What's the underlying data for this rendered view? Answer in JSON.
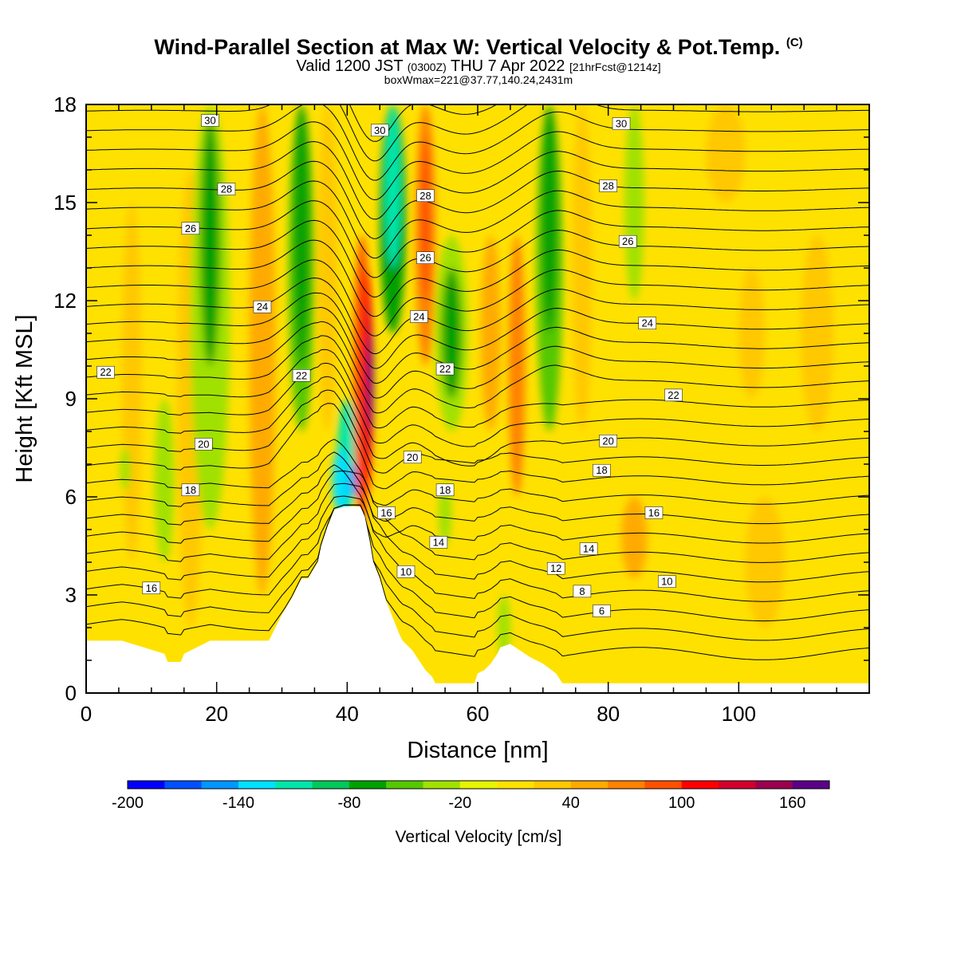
{
  "header": {
    "title": "Wind-Parallel Section at Max W: Vertical Velocity & Pot.Temp.",
    "copyright": "(C)",
    "valid_prefix": "Valid 1200 JST",
    "utc": "(0300Z)",
    "valid_date": "THU 7 Apr 2022",
    "forecast": "[21hrFcst@1214z]",
    "boxwmax": "boxWmax=221@37.77,140.24,2431m"
  },
  "chart_data": {
    "type": "heatmap",
    "xlabel": "Distance [nm]",
    "ylabel": "Height [Kft MSL]",
    "xlim": [
      0,
      120
    ],
    "ylim": [
      0,
      18
    ],
    "xticks": [
      0,
      20,
      40,
      60,
      80,
      100
    ],
    "yticks": [
      0,
      3,
      6,
      9,
      12,
      15,
      18
    ],
    "colorbar": {
      "label": "Vertical Velocity [cm/s]",
      "ticks": [
        -200,
        -140,
        -80,
        -20,
        40,
        100,
        160
      ],
      "levels": [
        -200,
        -180,
        -160,
        -140,
        -120,
        -100,
        -80,
        -60,
        -40,
        -20,
        0,
        20,
        40,
        60,
        80,
        100,
        120,
        140,
        160,
        180
      ],
      "colors": [
        "#0000ff",
        "#0050ff",
        "#0096ff",
        "#00e1ff",
        "#00e6aa",
        "#00c85a",
        "#00a000",
        "#55c800",
        "#a0e100",
        "#e6f500",
        "#ffe100",
        "#ffc800",
        "#ffaa00",
        "#ff8200",
        "#ff5000",
        "#ff0000",
        "#d2002d",
        "#9b0050",
        "#5a0087"
      ]
    },
    "vertical_velocity_bands": [
      {
        "x": 1,
        "width": 3,
        "ymin": 8,
        "ymax": 18,
        "level": 10
      },
      {
        "x": 7,
        "width": 3,
        "ymin": 4,
        "ymax": 15,
        "level": 11
      },
      {
        "x": 12,
        "width": 3,
        "ymin": 4,
        "ymax": 9,
        "level": 8
      },
      {
        "x": 6,
        "width": 1.6,
        "ymin": 6.2,
        "ymax": 7.5,
        "level": 8
      },
      {
        "x": 16,
        "width": 4,
        "ymin": 2,
        "ymax": 16,
        "level": 11
      },
      {
        "x": 19,
        "width": 6,
        "ymin": 5,
        "ymax": 18,
        "level": 8
      },
      {
        "x": 19,
        "width": 3,
        "ymin": 10,
        "ymax": 17.5,
        "level": 6
      },
      {
        "x": 27,
        "width": 4,
        "ymin": 3,
        "ymax": 18,
        "level": 12
      },
      {
        "x": 33,
        "width": 4,
        "ymin": 8,
        "ymax": 18,
        "level": 7
      },
      {
        "x": 33,
        "width": 2.5,
        "ymin": 10,
        "ymax": 18,
        "level": 6
      },
      {
        "x": 37,
        "width": 3,
        "ymin": 8,
        "ymax": 18,
        "level": 11
      },
      {
        "x": 40,
        "width": 3,
        "ymin": 5.5,
        "ymax": 9,
        "level": 4
      },
      {
        "x": 39,
        "width": 2.5,
        "ymin": 5.5,
        "ymax": 7.5,
        "level": 3
      },
      {
        "x": 41,
        "width": 1.4,
        "ymin": 6,
        "ymax": 7,
        "level": 2
      },
      {
        "x": 42.3,
        "width": 2.6,
        "ymin": 5,
        "ymax": 14,
        "level": 14
      },
      {
        "x": 43,
        "width": 1.8,
        "ymin": 6,
        "ymax": 13,
        "level": 15
      },
      {
        "x": 43.4,
        "width": 1.2,
        "ymin": 7,
        "ymax": 12,
        "level": 16
      },
      {
        "x": 43.6,
        "width": 0.8,
        "ymin": 8,
        "ymax": 11,
        "level": 18
      },
      {
        "x": 47,
        "width": 4,
        "ymin": 11,
        "ymax": 18,
        "level": 6
      },
      {
        "x": 47,
        "width": 2.5,
        "ymin": 13,
        "ymax": 18,
        "level": 4
      },
      {
        "x": 52,
        "width": 3,
        "ymin": 10,
        "ymax": 18,
        "level": 13
      },
      {
        "x": 52,
        "width": 1.5,
        "ymin": 12,
        "ymax": 17,
        "level": 14
      },
      {
        "x": 56,
        "width": 5,
        "ymin": 8,
        "ymax": 14,
        "level": 8
      },
      {
        "x": 56,
        "width": 3,
        "ymin": 9,
        "ymax": 13,
        "level": 6
      },
      {
        "x": 55,
        "width": 2,
        "ymin": 4.5,
        "ymax": 6.5,
        "level": 8
      },
      {
        "x": 62,
        "width": 3,
        "ymin": 8,
        "ymax": 14,
        "level": 12
      },
      {
        "x": 66,
        "width": 2.5,
        "ymin": 6,
        "ymax": 14,
        "level": 13
      },
      {
        "x": 71,
        "width": 4,
        "ymin": 8,
        "ymax": 18,
        "level": 7
      },
      {
        "x": 71,
        "width": 2.5,
        "ymin": 11,
        "ymax": 18,
        "level": 6
      },
      {
        "x": 76,
        "width": 3,
        "ymin": 8,
        "ymax": 18,
        "level": 11
      },
      {
        "x": 84,
        "width": 3,
        "ymin": 12,
        "ymax": 18,
        "level": 8
      },
      {
        "x": 64,
        "width": 2,
        "ymin": 1,
        "ymax": 3,
        "level": 8
      },
      {
        "x": 84,
        "width": 4,
        "ymin": 3.5,
        "ymax": 6,
        "level": 12
      },
      {
        "x": 94,
        "width": 6,
        "ymin": 1,
        "ymax": 5,
        "level": 10
      },
      {
        "x": 104,
        "width": 6,
        "ymin": 2,
        "ymax": 6,
        "level": 11
      },
      {
        "x": 116,
        "width": 5,
        "ymin": 1,
        "ymax": 8,
        "level": 10
      },
      {
        "x": 112,
        "width": 5,
        "ymin": 8,
        "ymax": 14,
        "level": 11
      },
      {
        "x": 102,
        "width": 4,
        "ymin": 9,
        "ymax": 13,
        "level": 11
      },
      {
        "x": 98,
        "width": 6,
        "ymin": 15,
        "ymax": 18,
        "level": 11
      }
    ],
    "theta_contours": {
      "labels": [
        {
          "text": "30",
          "x": 19,
          "y": 17.5
        },
        {
          "text": "30",
          "x": 45,
          "y": 17.2
        },
        {
          "text": "30",
          "x": 82,
          "y": 17.4
        },
        {
          "text": "28",
          "x": 21.5,
          "y": 15.4
        },
        {
          "text": "28",
          "x": 52,
          "y": 15.2
        },
        {
          "text": "28",
          "x": 80,
          "y": 15.5
        },
        {
          "text": "26",
          "x": 16,
          "y": 14.2
        },
        {
          "text": "26",
          "x": 52,
          "y": 13.3
        },
        {
          "text": "26",
          "x": 83,
          "y": 13.8
        },
        {
          "text": "24",
          "x": 27,
          "y": 11.8
        },
        {
          "text": "24",
          "x": 51,
          "y": 11.5
        },
        {
          "text": "24",
          "x": 86,
          "y": 11.3
        },
        {
          "text": "22",
          "x": 3,
          "y": 9.8
        },
        {
          "text": "22",
          "x": 33,
          "y": 9.7
        },
        {
          "text": "22",
          "x": 55,
          "y": 9.9
        },
        {
          "text": "22",
          "x": 90,
          "y": 9.1
        },
        {
          "text": "20",
          "x": 18,
          "y": 7.6
        },
        {
          "text": "20",
          "x": 50,
          "y": 7.2
        },
        {
          "text": "20",
          "x": 80,
          "y": 7.7
        },
        {
          "text": "18",
          "x": 16,
          "y": 6.2
        },
        {
          "text": "18",
          "x": 55,
          "y": 6.2
        },
        {
          "text": "18",
          "x": 79,
          "y": 6.8
        },
        {
          "text": "16",
          "x": 46,
          "y": 5.5
        },
        {
          "text": "16",
          "x": 87,
          "y": 5.5
        },
        {
          "text": "16",
          "x": 10,
          "y": 3.2
        },
        {
          "text": "14",
          "x": 54,
          "y": 4.6
        },
        {
          "text": "14",
          "x": 77,
          "y": 4.4
        },
        {
          "text": "12",
          "x": 72,
          "y": 3.8
        },
        {
          "text": "10",
          "x": 49,
          "y": 3.7
        },
        {
          "text": "10",
          "x": 89,
          "y": 3.4
        },
        {
          "text": "8",
          "x": 76,
          "y": 3.1
        },
        {
          "text": "6",
          "x": 79,
          "y": 2.5
        }
      ]
    },
    "terrain": {
      "x": [
        0,
        4,
        5.5,
        12,
        12.5,
        14.5,
        15,
        19,
        20.5,
        28,
        29,
        30,
        31.5,
        32.5,
        33,
        34,
        35.5,
        36,
        37,
        38,
        39.5,
        42,
        42.7,
        43.5,
        44,
        45,
        46,
        47,
        48,
        48.5,
        50,
        51,
        52,
        53,
        53.5,
        55,
        59.5,
        60,
        61,
        62,
        63,
        63.5,
        65,
        66.5,
        68,
        70,
        72,
        73,
        75,
        78,
        85,
        100,
        120
      ],
      "height": [
        1.6,
        1.6,
        1.6,
        1.2,
        0.95,
        0.95,
        1.2,
        1.6,
        1.6,
        1.6,
        2.0,
        2.4,
        2.9,
        3.3,
        3.5,
        3.5,
        4.0,
        4.5,
        5.1,
        5.6,
        5.7,
        5.7,
        5.4,
        4.6,
        4.0,
        3.5,
        2.8,
        2.3,
        1.8,
        1.6,
        1.3,
        1.0,
        0.7,
        0.5,
        0.3,
        0.3,
        0.3,
        0.6,
        0.7,
        0.9,
        1.2,
        1.4,
        1.5,
        1.3,
        1.1,
        0.9,
        0.6,
        0.3,
        0.3,
        0.3,
        0.3,
        0.3,
        0.3
      ]
    }
  }
}
